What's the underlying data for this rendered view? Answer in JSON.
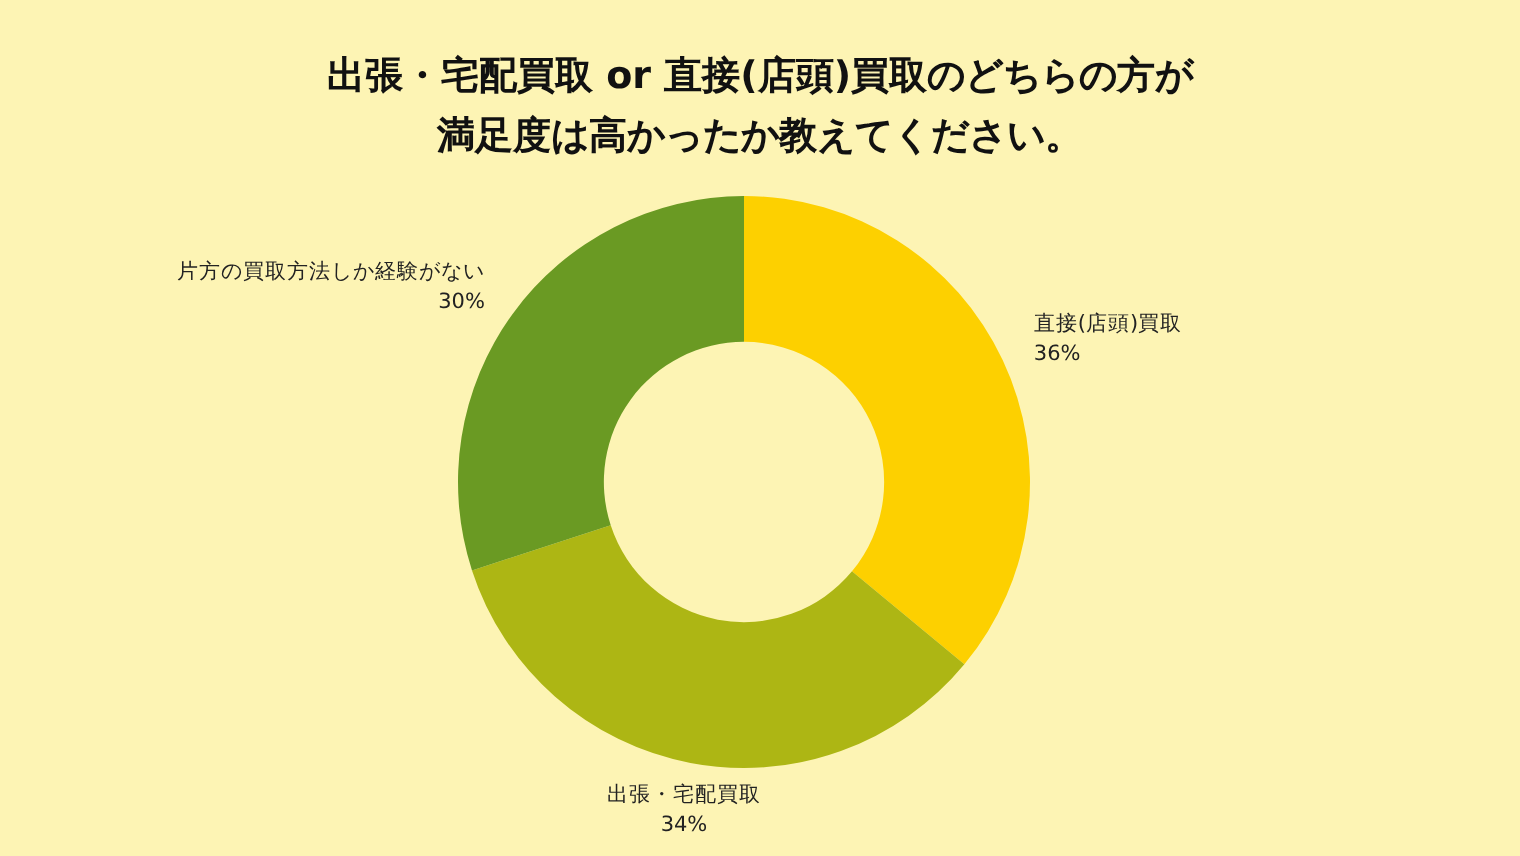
{
  "chart_data": {
    "type": "donut",
    "title": "出張・宅配買取 or 直接(店頭)買取のどちらの方が満足度は高かったか教えてください。",
    "categories": [
      "直接(店頭)買取",
      "出張・宅配買取",
      "片方の買取方法しか経験がない"
    ],
    "values": [
      36,
      34,
      30
    ],
    "value_labels": [
      "36%",
      "34%",
      "30%"
    ],
    "colors": [
      "#fdd000",
      "#adb614",
      "#6a9a23"
    ]
  }
}
